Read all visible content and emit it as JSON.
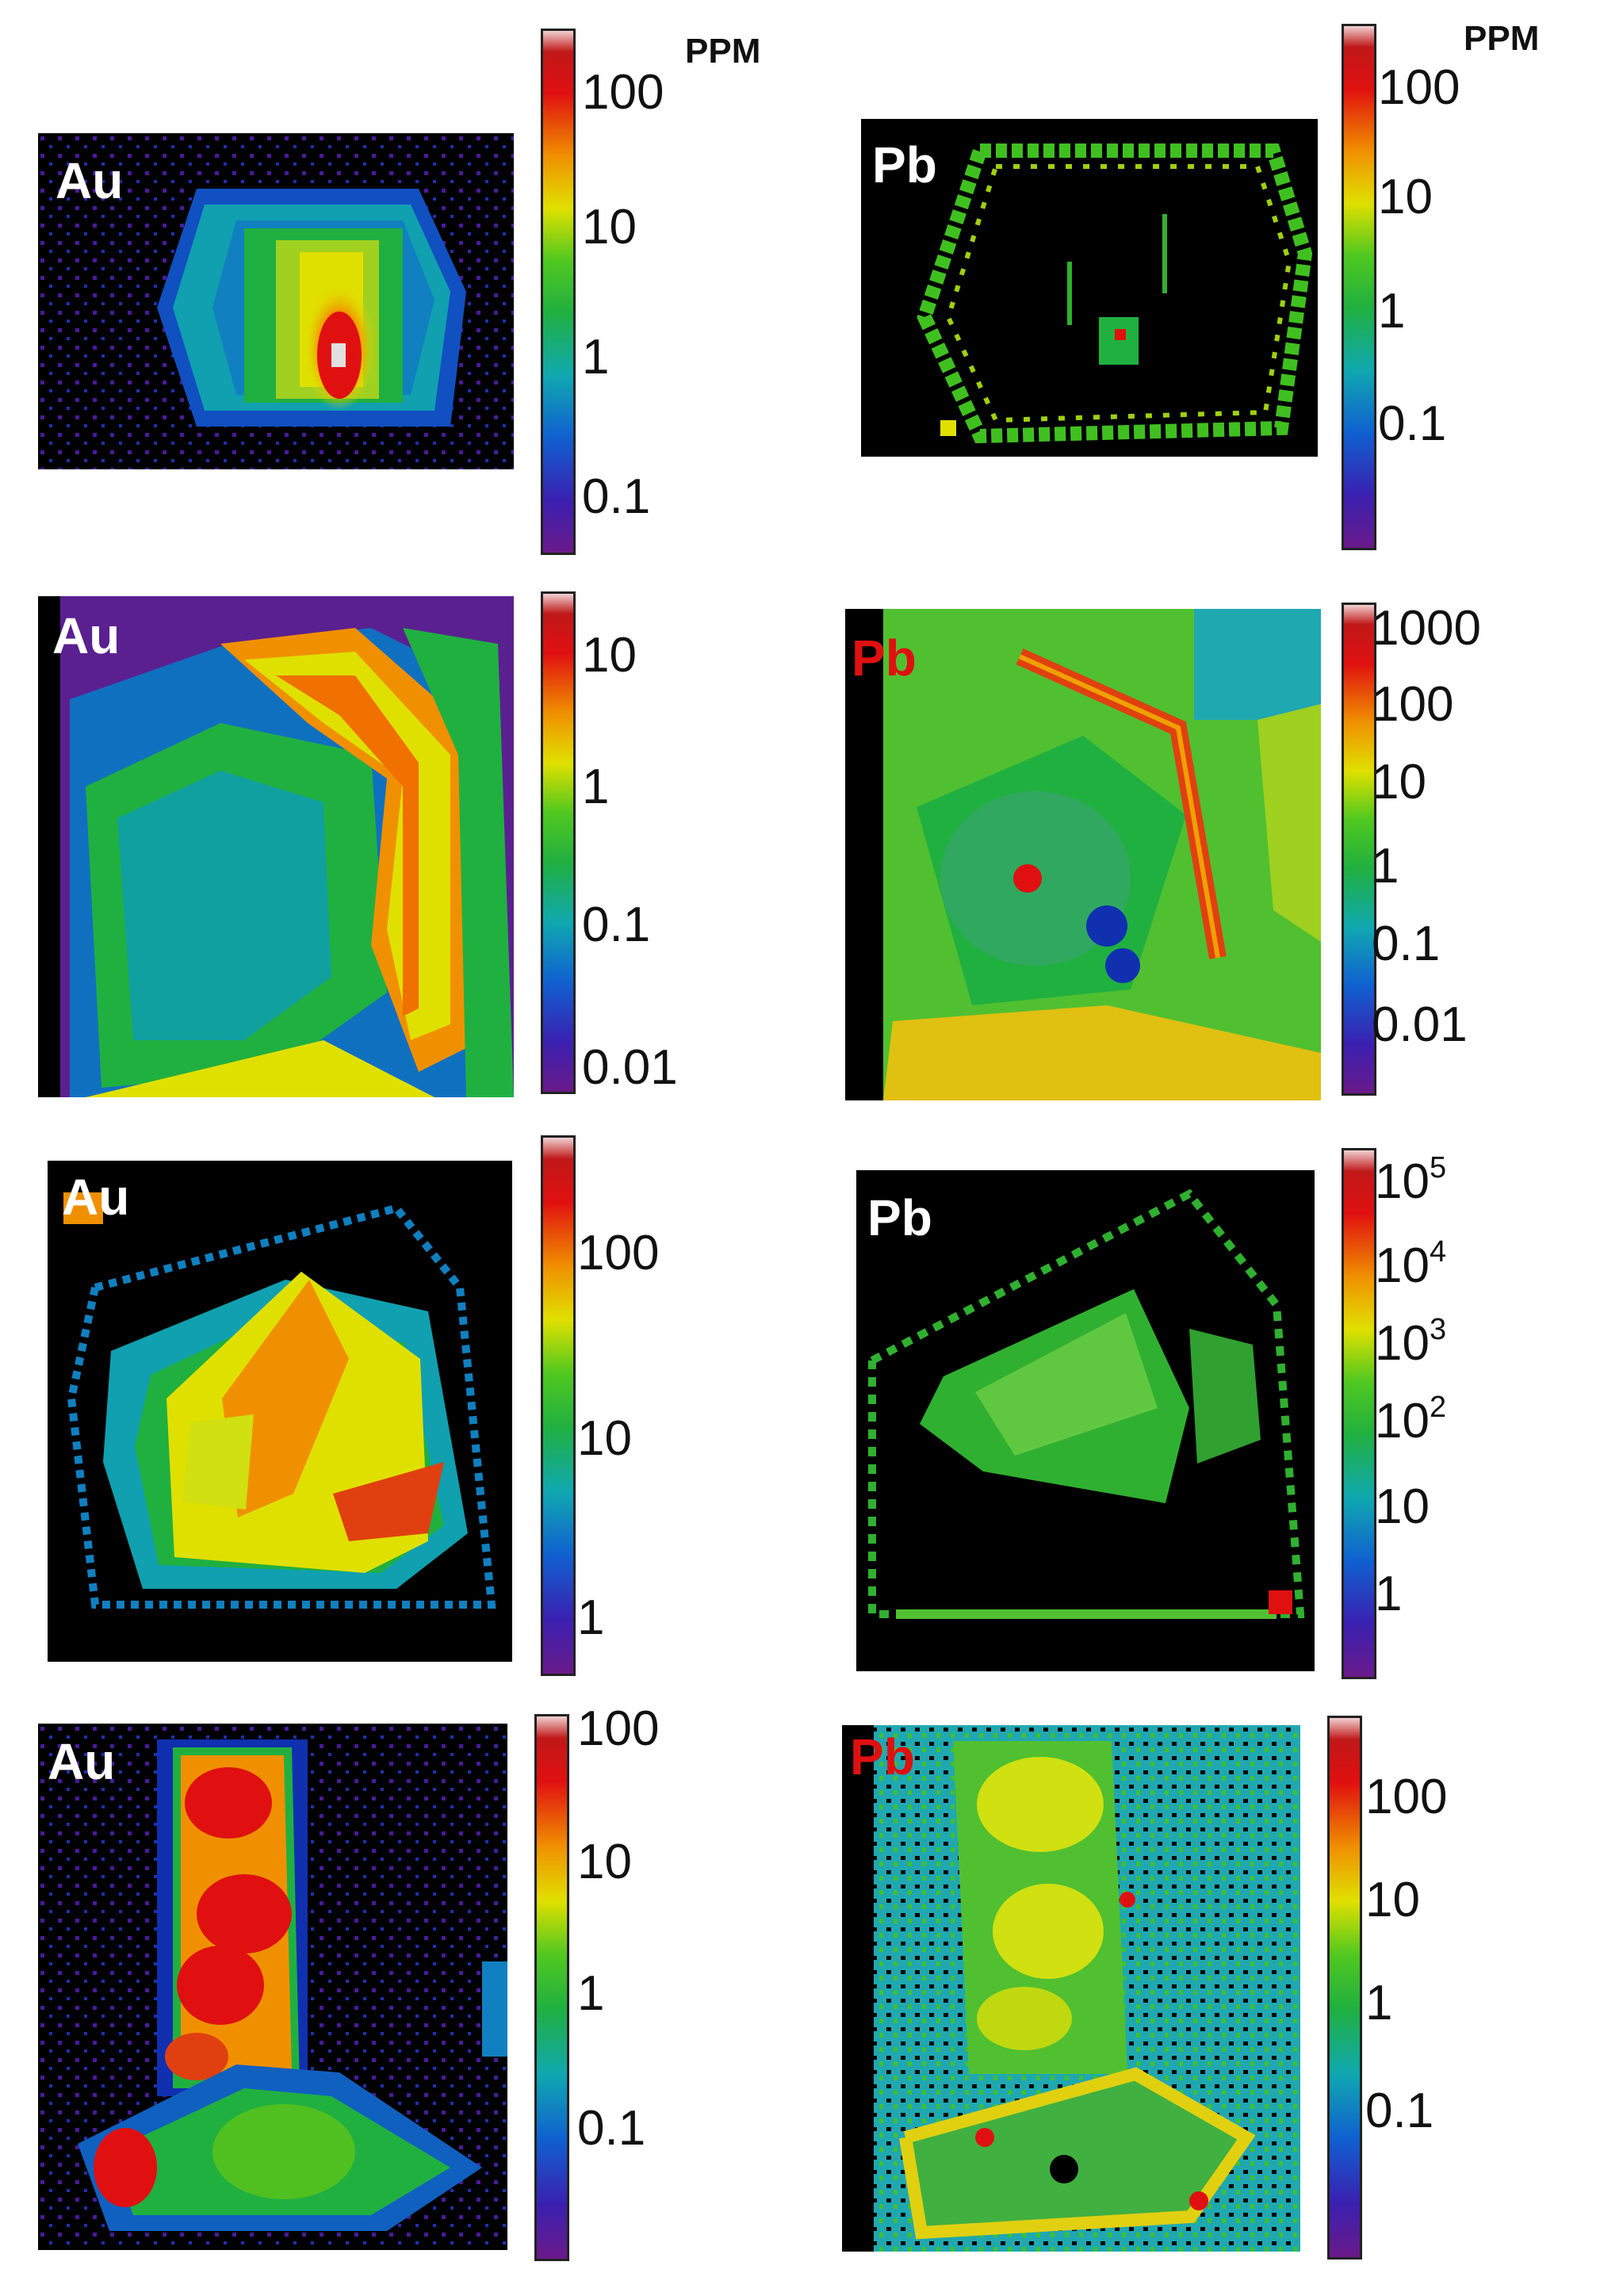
{
  "unit_label": "PPM",
  "colors": {
    "colorbar_stops": [
      "#6a1a8a",
      "#2020c0",
      "#1080d0",
      "#10b0a0",
      "#20c020",
      "#80d010",
      "#f0e000",
      "#f09000",
      "#e01010",
      "#f0c0c0"
    ]
  },
  "panels": [
    {
      "id": "r1-au",
      "element": "Au",
      "element_color": "#ffffff",
      "ticks": [
        "100",
        "10",
        "1",
        "0.1"
      ],
      "show_unit": false
    },
    {
      "id": "r1-pb",
      "element": "Pb",
      "element_color": "#ffffff",
      "ticks": [
        "100",
        "10",
        "1",
        "0.1"
      ],
      "show_unit": true
    },
    {
      "id": "r2-au",
      "element": "Au",
      "element_color": "#ffffff",
      "ticks": [
        "10",
        "1",
        "0.1",
        "0.01"
      ],
      "show_unit": false
    },
    {
      "id": "r2-pb",
      "element": "Pb",
      "element_color": "#e01010",
      "ticks": [
        "1000",
        "100",
        "10",
        "1",
        "0.1",
        "0.01"
      ],
      "show_unit": false
    },
    {
      "id": "r3-au",
      "element": "Au",
      "element_color": "#ffffff",
      "ticks": [
        "100",
        "10",
        "1"
      ],
      "show_unit": false
    },
    {
      "id": "r3-pb",
      "element": "Pb",
      "element_color": "#ffffff",
      "ticks_pow": [
        {
          "base": "10",
          "exp": "5"
        },
        {
          "base": "10",
          "exp": "4"
        },
        {
          "base": "10",
          "exp": "3"
        },
        {
          "base": "10",
          "exp": "2"
        }
      ],
      "ticks": [
        "10",
        "1"
      ],
      "show_unit": false
    },
    {
      "id": "r4-au",
      "element": "Au",
      "element_color": "#ffffff",
      "ticks": [
        "100",
        "10",
        "1",
        "0.1"
      ],
      "show_unit": false
    },
    {
      "id": "r4-pb",
      "element": "Pb",
      "element_color": "#e01010",
      "ticks": [
        "100",
        "10",
        "1",
        "0.1"
      ],
      "show_unit": false
    }
  ],
  "first_unit_label": "PPM"
}
